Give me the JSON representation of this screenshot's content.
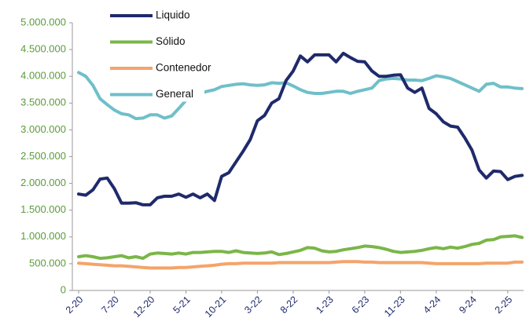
{
  "chart_data": {
    "type": "line",
    "categories": [
      "2-20",
      null,
      null,
      null,
      null,
      "7-20",
      null,
      null,
      null,
      null,
      "12-20",
      null,
      null,
      null,
      null,
      "5-21",
      null,
      null,
      null,
      null,
      "10-21",
      null,
      null,
      null,
      null,
      "3-22",
      null,
      null,
      null,
      null,
      "8-22",
      null,
      null,
      null,
      null,
      "1-23",
      null,
      null,
      null,
      null,
      "6-23",
      null,
      null,
      null,
      null,
      "11-23",
      null,
      null,
      null,
      null,
      "4-24",
      null,
      null,
      null,
      null,
      "9-24",
      null,
      null,
      null,
      null,
      "2-25",
      null,
      null
    ],
    "series": [
      {
        "name": "Liquido",
        "color": "#1f2a6b",
        "values": [
          1800000,
          1780000,
          1880000,
          2080000,
          2100000,
          1900000,
          1630000,
          1630000,
          1640000,
          1600000,
          1600000,
          1730000,
          1760000,
          1760000,
          1800000,
          1740000,
          1800000,
          1730000,
          1800000,
          1680000,
          2130000,
          2200000,
          2400000,
          2600000,
          2820000,
          3170000,
          3270000,
          3500000,
          3580000,
          3920000,
          4100000,
          4380000,
          4270000,
          4400000,
          4400000,
          4400000,
          4270000,
          4430000,
          4350000,
          4280000,
          4270000,
          4100000,
          4000000,
          4000000,
          4020000,
          4030000,
          3780000,
          3700000,
          3780000,
          3400000,
          3300000,
          3150000,
          3070000,
          3050000,
          2850000,
          2620000,
          2250000,
          2100000,
          2230000,
          2220000,
          2070000,
          2130000,
          2150000
        ]
      },
      {
        "name": "Sólido",
        "color": "#7ab648",
        "values": [
          630000,
          650000,
          630000,
          600000,
          610000,
          630000,
          650000,
          610000,
          630000,
          600000,
          680000,
          700000,
          690000,
          680000,
          700000,
          680000,
          710000,
          710000,
          720000,
          730000,
          730000,
          710000,
          740000,
          710000,
          700000,
          690000,
          700000,
          720000,
          670000,
          690000,
          720000,
          750000,
          800000,
          790000,
          740000,
          720000,
          730000,
          760000,
          780000,
          800000,
          830000,
          820000,
          800000,
          770000,
          730000,
          710000,
          720000,
          730000,
          750000,
          780000,
          800000,
          780000,
          810000,
          790000,
          820000,
          860000,
          880000,
          940000,
          950000,
          1000000,
          1010000,
          1020000,
          990000
        ]
      },
      {
        "name": "Contenedor",
        "color": "#f4a46a",
        "values": [
          510000,
          500000,
          490000,
          480000,
          470000,
          460000,
          460000,
          450000,
          440000,
          430000,
          420000,
          420000,
          420000,
          420000,
          430000,
          430000,
          440000,
          450000,
          460000,
          470000,
          490000,
          500000,
          500000,
          510000,
          510000,
          510000,
          510000,
          510000,
          520000,
          520000,
          520000,
          520000,
          520000,
          520000,
          520000,
          520000,
          530000,
          540000,
          540000,
          540000,
          530000,
          530000,
          520000,
          520000,
          520000,
          520000,
          520000,
          520000,
          520000,
          510000,
          500000,
          500000,
          500000,
          500000,
          500000,
          500000,
          500000,
          510000,
          510000,
          510000,
          510000,
          530000,
          530000
        ]
      },
      {
        "name": "General",
        "color": "#6fbfc9",
        "values": [
          4070000,
          4000000,
          3830000,
          3580000,
          3470000,
          3370000,
          3300000,
          3280000,
          3210000,
          3220000,
          3280000,
          3280000,
          3220000,
          3260000,
          3400000,
          3550000,
          3620000,
          3680000,
          3720000,
          3750000,
          3810000,
          3830000,
          3850000,
          3860000,
          3840000,
          3830000,
          3840000,
          3880000,
          3870000,
          3880000,
          3820000,
          3750000,
          3700000,
          3680000,
          3680000,
          3700000,
          3720000,
          3720000,
          3680000,
          3720000,
          3750000,
          3780000,
          3920000,
          3950000,
          3960000,
          3950000,
          3930000,
          3930000,
          3920000,
          3960000,
          4010000,
          3990000,
          3960000,
          3900000,
          3840000,
          3780000,
          3720000,
          3850000,
          3870000,
          3800000,
          3800000,
          3780000,
          3770000
        ]
      }
    ],
    "ylim": [
      0,
      5000000
    ],
    "yticks": [
      0,
      {
        "value": 500000,
        "label": "500.000"
      },
      {
        "value": 1000000,
        "label": "1.000.000"
      },
      {
        "value": 1500000,
        "label": "1.500.000"
      },
      {
        "value": 2000000,
        "label": "2.000.000"
      },
      {
        "value": 2500000,
        "label": "2.500.000"
      },
      {
        "value": 3000000,
        "label": "3.000.000"
      },
      {
        "value": 3500000,
        "label": "3.500.000"
      },
      {
        "value": 4000000,
        "label": "4.000.000"
      },
      {
        "value": 4500000,
        "label": "4.500.000"
      },
      {
        "value": 5000000,
        "label": "5.000.000"
      }
    ],
    "grid": false,
    "legend": "upper left"
  }
}
